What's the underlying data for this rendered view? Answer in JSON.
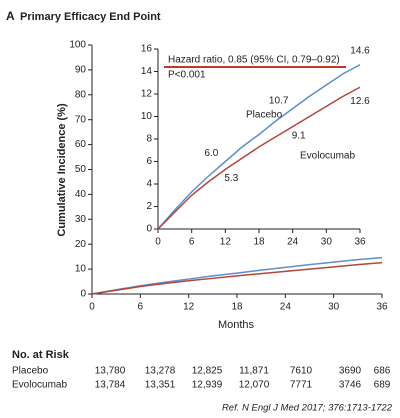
{
  "header": {
    "label": "A",
    "title": "Primary Efficacy End Point"
  },
  "chart_data": [
    {
      "type": "line",
      "x_label": "Months",
      "y_label": "Cumulative Incidence (%)",
      "x": [
        0,
        3,
        6,
        9,
        12,
        15,
        18,
        21,
        24,
        27,
        30,
        33,
        36
      ],
      "xlim": [
        0,
        36
      ],
      "xticks": [
        0,
        6,
        12,
        18,
        24,
        30,
        36
      ],
      "ylim": [
        0,
        100
      ],
      "yticks": [
        0,
        10,
        20,
        30,
        40,
        50,
        60,
        70,
        80,
        90,
        100
      ],
      "series": [
        {
          "color": "#5b8fd0",
          "values": [
            0,
            1.7,
            3.3,
            4.7,
            6.0,
            7.3,
            8.4,
            9.6,
            10.7,
            11.8,
            12.8,
            13.8,
            14.6
          ]
        },
        {
          "color": "#b5443a",
          "values": [
            0,
            1.5,
            3.0,
            4.2,
            5.3,
            6.3,
            7.3,
            8.2,
            9.1,
            10.0,
            10.9,
            11.8,
            12.6
          ]
        }
      ]
    },
    {
      "type": "line",
      "x": [
        0,
        3,
        6,
        9,
        12,
        15,
        18,
        21,
        24,
        27,
        30,
        33,
        36
      ],
      "xlim": [
        0,
        36
      ],
      "xticks": [
        0,
        6,
        12,
        18,
        24,
        30,
        36
      ],
      "ylim": [
        0,
        16
      ],
      "yticks": [
        0,
        2,
        4,
        6,
        8,
        10,
        12,
        14,
        16
      ],
      "annotations": [
        "Hazard ratio, 0.85 (95% CI, 0.79–0.92)",
        "P<0.001"
      ],
      "series": [
        {
          "name": "Placebo",
          "color": "#5b8fd0",
          "values": [
            0,
            1.7,
            3.3,
            4.7,
            6.0,
            7.3,
            8.4,
            9.6,
            10.7,
            11.8,
            12.8,
            13.8,
            14.6
          ],
          "value_labels": [
            null,
            null,
            null,
            null,
            "6.0",
            null,
            null,
            null,
            "10.7",
            null,
            null,
            null,
            "14.6"
          ]
        },
        {
          "name": "Evolocumab",
          "color": "#b5443a",
          "values": [
            0,
            1.5,
            3.0,
            4.2,
            5.3,
            6.3,
            7.3,
            8.2,
            9.1,
            10.0,
            10.9,
            11.8,
            12.6
          ],
          "value_labels": [
            null,
            null,
            null,
            null,
            "5.3",
            null,
            null,
            null,
            "9.1",
            null,
            null,
            null,
            "12.6"
          ]
        }
      ]
    }
  ],
  "risk_table": {
    "title": "No. at Risk",
    "rows": [
      [
        "Placebo",
        "13,780",
        "13,278",
        "12,825",
        "11,871",
        "7610",
        "3690",
        "686"
      ],
      [
        "Evolocumab",
        "13,784",
        "13,351",
        "12,939",
        "12,070",
        "7771",
        "3746",
        "689"
      ]
    ]
  },
  "footnote": "Ref. N Engl J Med 2017; 376:1713-1722"
}
